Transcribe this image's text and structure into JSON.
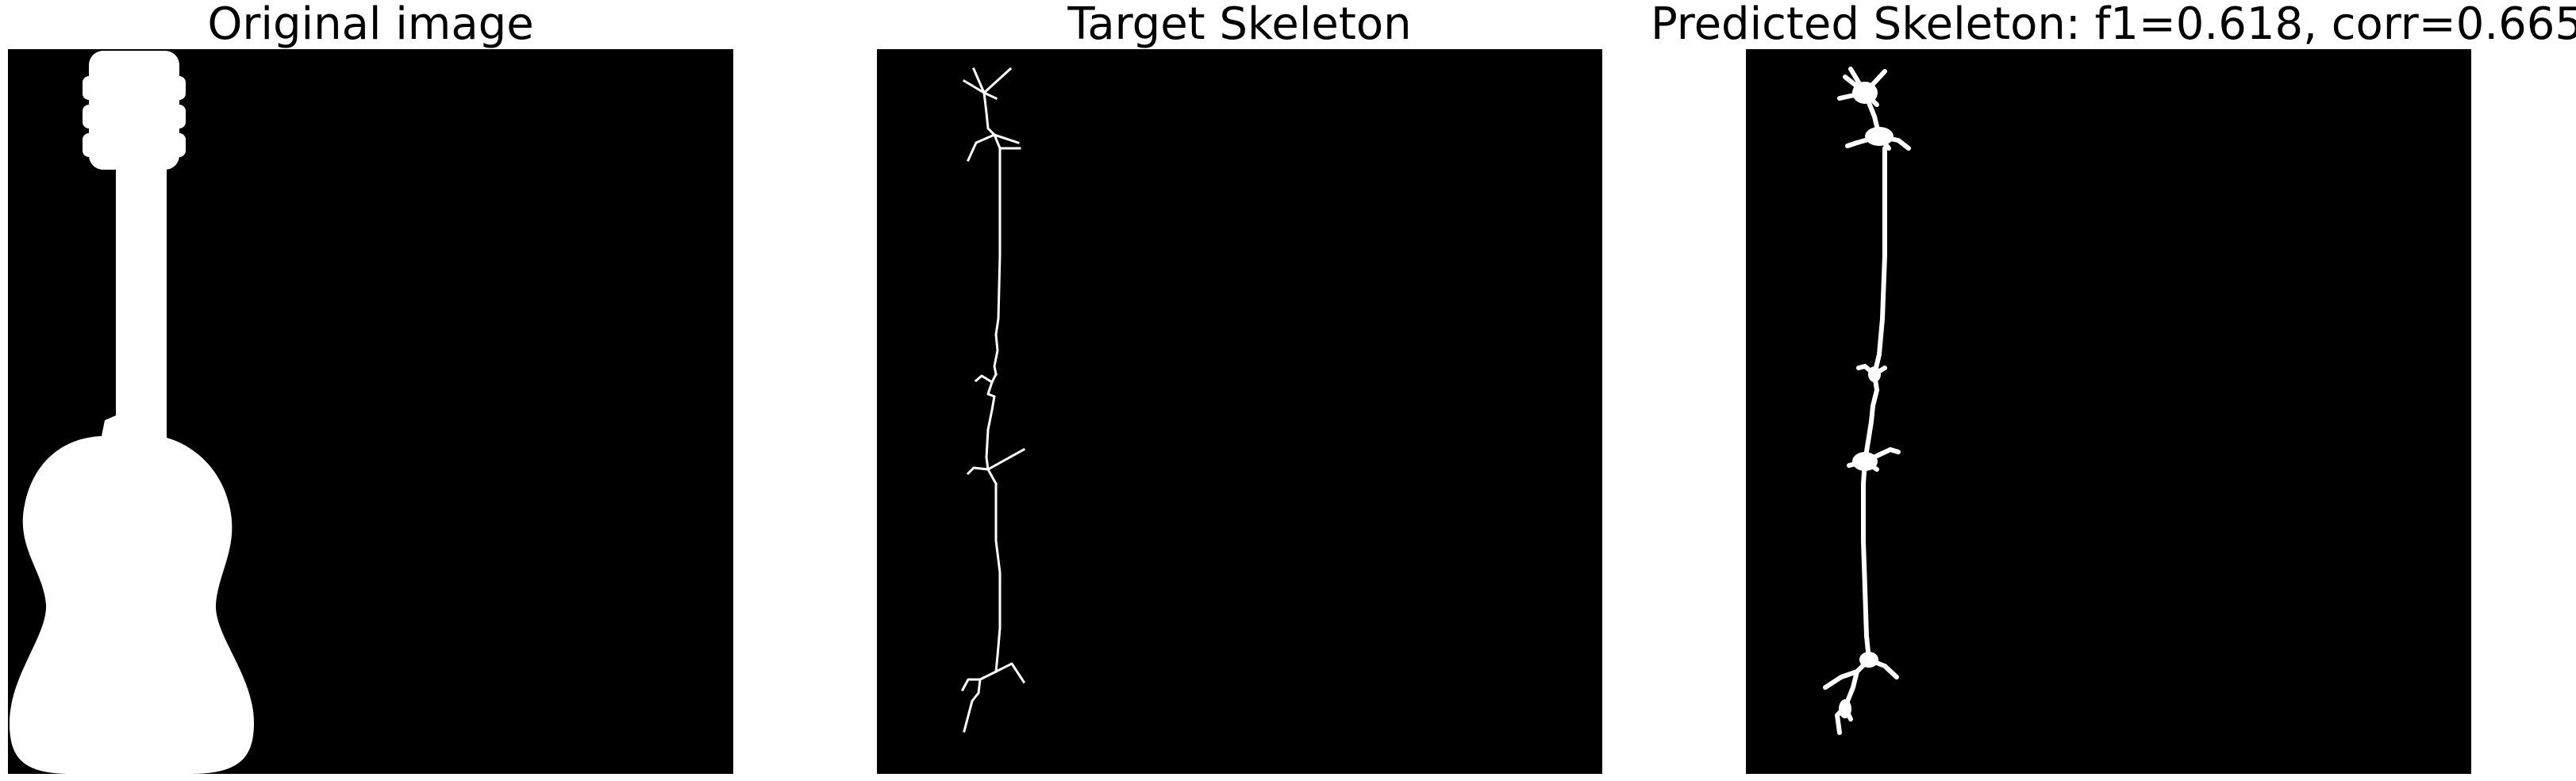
{
  "panels": [
    {
      "title": "Original image",
      "content": "guitar-silhouette"
    },
    {
      "title": "Target Skeleton",
      "content": "thin-skeleton"
    },
    {
      "title": "Predicted Skeleton: f1=0.618, corr=0.665",
      "content": "thick-skeleton"
    }
  ],
  "colors": {
    "background": "#000000",
    "foreground": "#ffffff",
    "page": "#ffffff",
    "title_text": "#000000"
  }
}
